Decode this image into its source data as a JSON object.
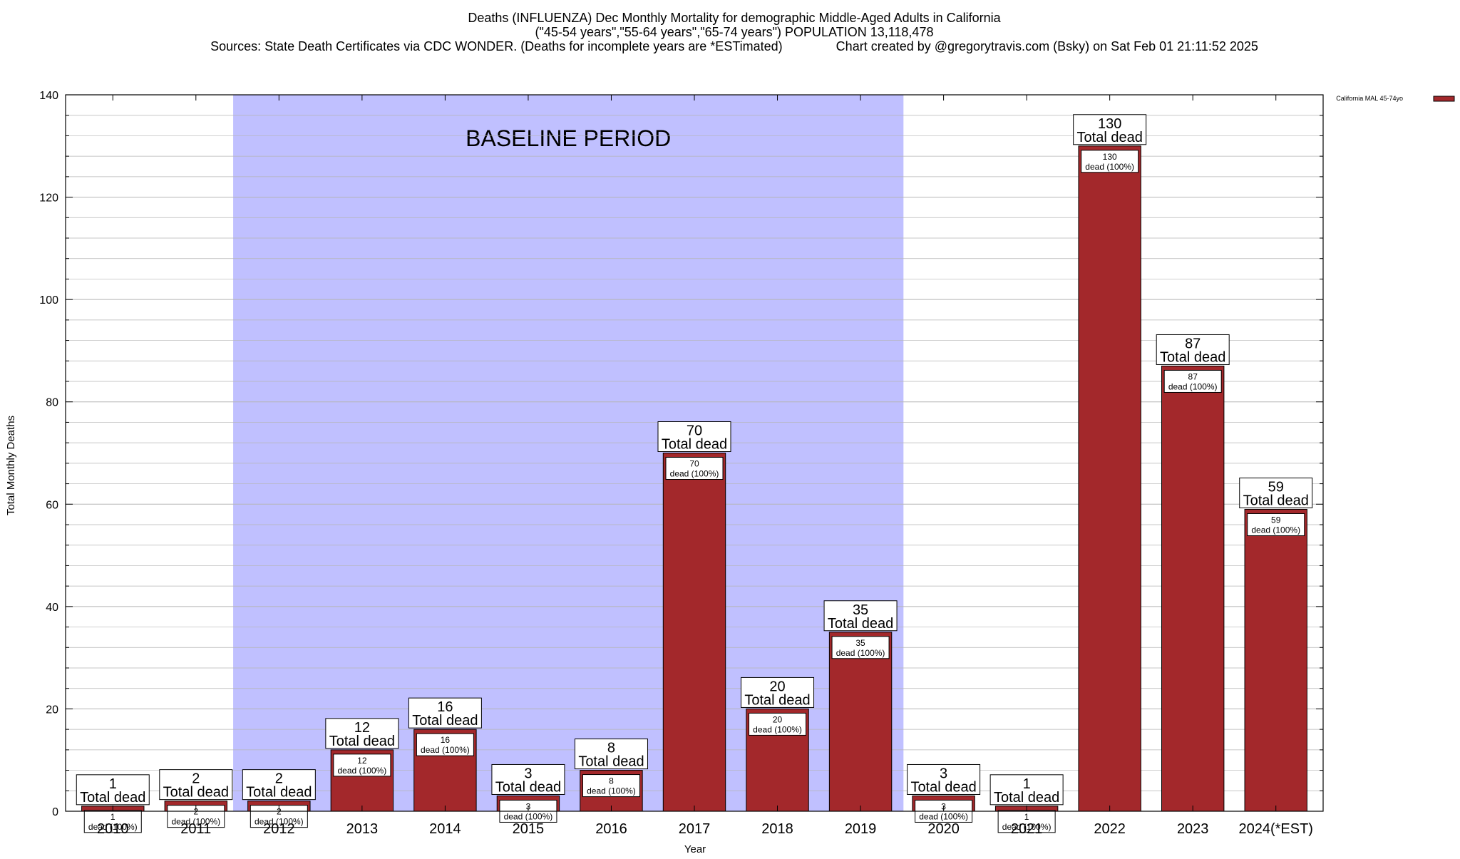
{
  "chart_data": {
    "type": "bar",
    "title_lines": [
      "Deaths (INFLUENZA) Dec Monthly Mortality for demographic Middle-Aged Adults in California",
      "(\"45-54 years\",\"55-64 years\",\"65-74 years\") POPULATION 13,118,478",
      "Sources: State Death Certificates via CDC WONDER. (Deaths for incomplete years are *ESTimated)               Chart created by @gregorytravis.com (Bsky) on Sat Feb 01 21:11:52 2025"
    ],
    "xlabel": "Year",
    "ylabel": "Total Monthly Deaths",
    "ylim": [
      0,
      140
    ],
    "yticks": [
      0,
      20,
      40,
      60,
      80,
      100,
      120,
      140
    ],
    "grid": true,
    "legend": {
      "position": "top-right",
      "entries": [
        "California MAL 45-74yo"
      ]
    },
    "categories": [
      "2010",
      "2011",
      "2012",
      "2013",
      "2014",
      "2015",
      "2016",
      "2017",
      "2018",
      "2019",
      "2020",
      "2021",
      "2022",
      "2023",
      "2024(*EST)"
    ],
    "series": [
      {
        "name": "California MAL 45-74yo",
        "values": [
          1,
          2,
          2,
          12,
          16,
          3,
          8,
          70,
          20,
          35,
          3,
          1,
          130,
          87,
          59
        ]
      }
    ],
    "total_label": "Total dead",
    "inner_label_suffix": "dead (100%)",
    "baseline_region": {
      "label": "BASELINE PERIOD",
      "from": "2012",
      "to": "2019"
    },
    "colors": {
      "bar": "#a3282b",
      "baseline_band": "#c0c0ff",
      "grid": "#b5b5b5"
    }
  }
}
